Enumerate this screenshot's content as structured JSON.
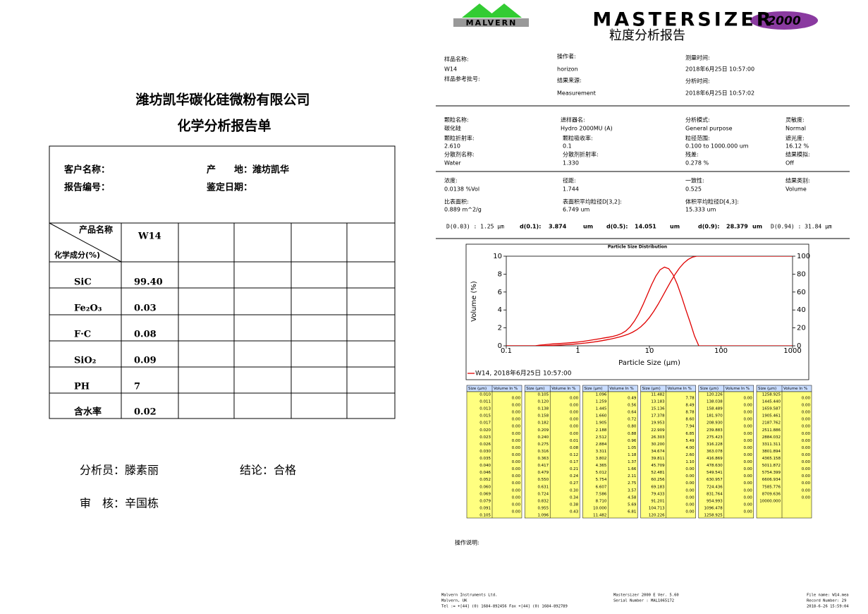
{
  "left": {
    "company": "潍坊凯华碳化硅微粉有限公司",
    "title": "化学分析报告单",
    "customer": "客户名称：",
    "origin": "产　　地：潍坊凯华",
    "report_no": "报告编号：",
    "date": "鉴定日期：",
    "product_header": "产品名称",
    "component_header": "化学成分(%)",
    "product": "W14",
    "rows": [
      {
        "name": "SiC",
        "value": "99.40"
      },
      {
        "name": "Fe₂O₃",
        "value": "0.03"
      },
      {
        "name": "F·C",
        "value": "0.08"
      },
      {
        "name": "SiO₂",
        "value": "0.09"
      },
      {
        "name": "PH",
        "value": "7"
      },
      {
        "name": "含水率",
        "value": "0.02"
      }
    ],
    "analyst": "分析员：滕素丽",
    "conclusion": "结论：合格",
    "reviewer": "审　核：辛国栋"
  },
  "right": {
    "brand": "MALVERN",
    "product": "MASTERSIZER",
    "logo": "2000",
    "title": "粒度分析报告",
    "info": [
      {
        "label": "样品名称:",
        "value": "W14"
      },
      {
        "label": "样品参考批号:"
      },
      {
        "label": "操作者:",
        "value": "horizon"
      },
      {
        "label": "结果来源:",
        "value": "Measurement"
      },
      {
        "label": "测量时间:",
        "value": "2018年6月25日 10:57:00"
      },
      {
        "label": "分析时间:",
        "value": "2018年6月25日 10:57:02"
      }
    ],
    "params": [
      {
        "label": "颗粒名称:",
        "value": "碳化硅"
      },
      {
        "label": "进样器名:",
        "value": "Hydro 2000MU (A)"
      },
      {
        "label": "分析模式:",
        "value": "General purpose"
      },
      {
        "label": "灵敏度:",
        "value": "Normal"
      },
      {
        "label": "颗粒折射率:",
        "value": "2.610"
      },
      {
        "label": "颗粒吸收率:",
        "value": "0.1"
      },
      {
        "label": "粒径范围:",
        "value": "0.100    to    1000.000   um"
      },
      {
        "label": "遮光度:",
        "value": "16.12     %"
      },
      {
        "label": "分散剂名称:",
        "value": "Water"
      },
      {
        "label": "分散剂折射率:",
        "value": "1.330"
      },
      {
        "label": "残差:",
        "value": "0.278        %"
      },
      {
        "label": "结果模拟:",
        "value": "Off"
      },
      {
        "label": "浓度:",
        "value": "0.0138       %Vol"
      },
      {
        "label": "径距:",
        "value": "1.744"
      },
      {
        "label": "一致性:",
        "value": "0.525"
      },
      {
        "label": "结果类别:",
        "value": "Volume"
      },
      {
        "label": "比表面积:",
        "value": "0.889       m^2/g"
      },
      {
        "label": "表面积平均粒径D[3,2]:",
        "value": "6.749       um"
      },
      {
        "label": "体积平均粒径D[4,3]:",
        "value": "15.333      um"
      }
    ],
    "d_line": [
      "D(0.03) : 1.25 μm",
      "d(0.1):",
      "3.874",
      "um",
      "d(0.5):",
      "14.051",
      "um",
      "d(0.9):",
      "28.379",
      "um",
      "D(0.94) : 31.84 μm"
    ],
    "size_header": "Size (μm)",
    "volume_header": "Volume In %",
    "size_tables": [
      {
        "sizes": [
          "0.010",
          "0.011",
          "0.013",
          "0.015",
          "0.017",
          "0.020",
          "0.023",
          "0.026",
          "0.030",
          "0.035",
          "0.040",
          "0.046",
          "0.052",
          "0.060",
          "0.069",
          "0.079",
          "0.091",
          "0.105"
        ],
        "volumes": [
          "0.00",
          "0.00",
          "0.00",
          "0.00",
          "0.00",
          "0.00",
          "0.00",
          "0.00",
          "0.00",
          "0.00",
          "0.00",
          "0.00",
          "0.00",
          "0.00",
          "0.00",
          "0.00",
          "0.00"
        ]
      },
      {
        "sizes": [
          "0.105",
          "0.120",
          "0.138",
          "0.158",
          "0.182",
          "0.209",
          "0.240",
          "0.275",
          "0.316",
          "0.363",
          "0.417",
          "0.479",
          "0.550",
          "0.631",
          "0.724",
          "0.832",
          "0.955",
          "1.096"
        ],
        "volumes": [
          "0.00",
          "0.00",
          "0.00",
          "0.00",
          "0.00",
          "0.00",
          "0.01",
          "0.08",
          "0.12",
          "0.17",
          "0.21",
          "0.24",
          "0.27",
          "0.30",
          "0.34",
          "0.38",
          "0.43"
        ]
      },
      {
        "sizes": [
          "1.096",
          "1.259",
          "1.445",
          "1.660",
          "1.905",
          "2.188",
          "2.512",
          "2.884",
          "3.311",
          "3.802",
          "4.365",
          "5.012",
          "5.754",
          "6.607",
          "7.586",
          "8.710",
          "10.000",
          "11.482"
        ],
        "volumes": [
          "0.49",
          "0.56",
          "0.64",
          "0.72",
          "0.80",
          "0.88",
          "0.96",
          "1.05",
          "1.18",
          "1.37",
          "1.66",
          "2.11",
          "2.75",
          "3.57",
          "4.58",
          "5.69",
          "6.81"
        ]
      },
      {
        "sizes": [
          "11.482",
          "13.183",
          "15.136",
          "17.378",
          "19.953",
          "22.909",
          "26.303",
          "30.200",
          "34.674",
          "39.811",
          "45.709",
          "52.481",
          "60.256",
          "69.183",
          "79.433",
          "91.201",
          "104.713",
          "120.226"
        ],
        "volumes": [
          "7.78",
          "8.49",
          "8.78",
          "8.60",
          "7.94",
          "6.85",
          "5.49",
          "4.00",
          "2.60",
          "1.10",
          "0.00",
          "0.00",
          "0.00",
          "0.00",
          "0.00",
          "0.00",
          "0.00"
        ]
      },
      {
        "sizes": [
          "120.226",
          "138.038",
          "158.489",
          "181.970",
          "208.930",
          "239.883",
          "275.423",
          "316.228",
          "363.078",
          "416.869",
          "478.630",
          "549.541",
          "630.957",
          "724.436",
          "831.764",
          "954.993",
          "1096.478",
          "1258.925"
        ],
        "volumes": [
          "0.00",
          "0.00",
          "0.00",
          "0.00",
          "0.00",
          "0.00",
          "0.00",
          "0.00",
          "0.00",
          "0.00",
          "0.00",
          "0.00",
          "0.00",
          "0.00",
          "0.00",
          "0.00",
          "0.00"
        ]
      },
      {
        "sizes": [
          "1258.925",
          "1445.440",
          "1659.587",
          "1905.461",
          "2187.762",
          "2511.886",
          "2884.032",
          "3311.311",
          "3801.894",
          "4365.158",
          "5011.872",
          "5754.399",
          "6606.934",
          "7585.776",
          "8709.636",
          "10000.000"
        ],
        "volumes": [
          "0.00",
          "0.00",
          "0.00",
          "0.00",
          "0.00",
          "0.00",
          "0.00",
          "0.00",
          "0.00",
          "0.00",
          "0.00",
          "0.00",
          "0.00",
          "0.00",
          "0.00"
        ]
      }
    ],
    "operator_note": "操作说明:",
    "footer": [
      [
        "Malvern Instruments Ltd.",
        "Malvern, UK",
        "Tel := +[44] (0) 1684-892456 Fax +[44] (0) 1684-892789"
      ],
      [
        "Mastersizer 2000 E Ver. 5.60",
        "Serial Number : MAL1065172"
      ],
      [
        "File name: W14.mea",
        "Record Number: 29",
        "2018-6-26 15:59:04"
      ]
    ]
  },
  "chart_data": {
    "type": "line",
    "title": "Particle Size Distribution",
    "xlabel": "Particle Size (μm)",
    "ylabel": "Volume (%)",
    "log_x": true,
    "xlim": [
      0.1,
      1000
    ],
    "xticks": [
      0.1,
      1,
      10,
      100,
      1000
    ],
    "ylim": [
      0,
      10
    ],
    "yticks": [
      0,
      2,
      4,
      6,
      8,
      10
    ],
    "y2lim": [
      0,
      100
    ],
    "y2ticks": [
      0,
      20,
      40,
      60,
      80,
      100
    ],
    "series": [
      {
        "name": "W14, 2018年6月25日 10:57:00",
        "color": "#e00000"
      }
    ]
  }
}
